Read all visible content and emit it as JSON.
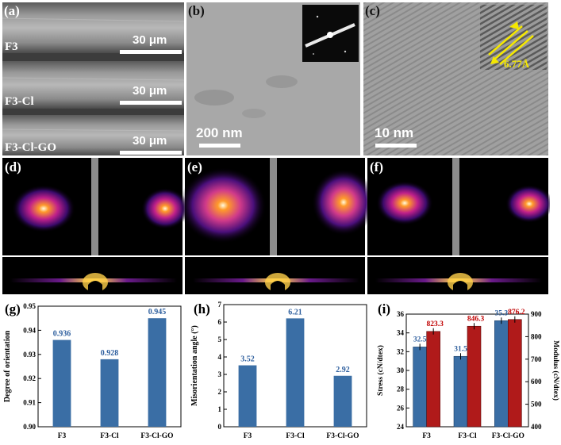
{
  "panels": {
    "a": {
      "label": "(a)",
      "samples": [
        "F3",
        "F3-Cl",
        "F3-Cl-GO"
      ],
      "scalebar": "30 μm"
    },
    "b": {
      "label": "(b)",
      "scalebar": "200 nm"
    },
    "c": {
      "label": "(c)",
      "scalebar": "10 nm",
      "d_spacing": "6.77Å"
    },
    "d": {
      "label": "(d)"
    },
    "e": {
      "label": "(e)"
    },
    "f": {
      "label": "(f)"
    },
    "g": {
      "label": "(g)"
    },
    "h": {
      "label": "(h)"
    },
    "i": {
      "label": "(i)"
    }
  },
  "colors": {
    "bar_blue": "#3a6ea5",
    "bar_red": "#b01a1a",
    "label_blue": "#2e5f9e",
    "label_red": "#c00000",
    "dspacing_yellow": "#f5e800"
  },
  "chart_data": [
    {
      "type": "bar",
      "panel": "g",
      "categories": [
        "F3",
        "F3-Cl",
        "F3-Cl-GO"
      ],
      "values": [
        0.936,
        0.928,
        0.945
      ],
      "value_labels": [
        "0.936",
        "0.928",
        "0.945"
      ],
      "ylabel": "Degree of orientation",
      "ylim": [
        0.9,
        0.95
      ],
      "yticks": [
        "0.90",
        "0.91",
        "0.92",
        "0.93",
        "0.94",
        "0.95"
      ]
    },
    {
      "type": "bar",
      "panel": "h",
      "categories": [
        "F3",
        "F3-Cl",
        "F3-Cl-GO"
      ],
      "values": [
        3.52,
        6.21,
        2.92
      ],
      "value_labels": [
        "3.52",
        "6.21",
        "2.92"
      ],
      "ylabel": "Misorientation angle (°)",
      "ylim": [
        0,
        7
      ],
      "yticks": [
        "0",
        "1",
        "2",
        "3",
        "4",
        "5",
        "6",
        "7"
      ]
    },
    {
      "type": "bar",
      "panel": "i",
      "categories": [
        "F3",
        "F3-Cl",
        "F3-Cl-GO"
      ],
      "series": [
        {
          "values": [
            32.5,
            31.5,
            35.3
          ],
          "labels": [
            "32.5",
            "31.5",
            "35.3"
          ],
          "axis": "left"
        },
        {
          "values": [
            823.3,
            846.3,
            876.2
          ],
          "labels": [
            "823.3",
            "846.3",
            "876.2"
          ],
          "axis": "right"
        }
      ],
      "ylabel": "Stress (cN/dtex)",
      "ylabel_right": "Modulus (cN/dtex)",
      "ylim": [
        24,
        36
      ],
      "ylim_right": [
        400,
        900
      ],
      "yticks": [
        "24",
        "26",
        "28",
        "30",
        "32",
        "34",
        "36"
      ],
      "yticks_right": [
        "400",
        "500",
        "600",
        "700",
        "800",
        "900"
      ]
    }
  ]
}
